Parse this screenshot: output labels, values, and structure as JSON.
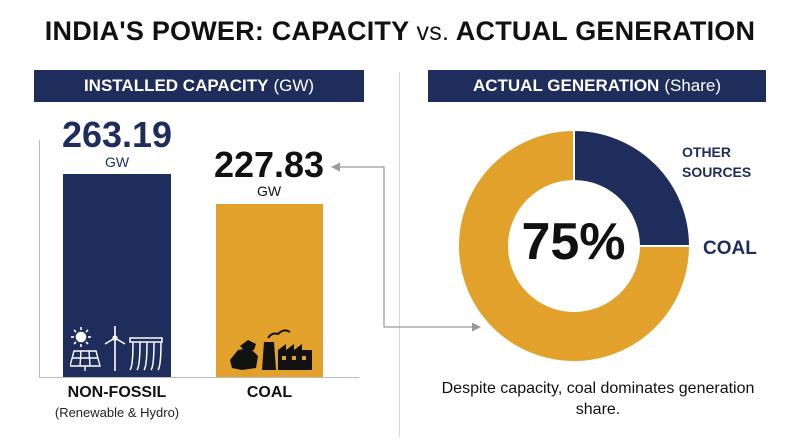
{
  "title": {
    "main": "INDIA'S POWER: CAPACITY",
    "vs": "vs.",
    "end": "ACTUAL GENERATION"
  },
  "left_panel": {
    "header": "INSTALLED CAPACITY",
    "header_sub": "(GW)"
  },
  "right_panel": {
    "header": "ACTUAL GENERATION",
    "header_sub": "(Share)"
  },
  "caption": "Despite capacity, coal dominates generation share.",
  "colors": {
    "navy": "#1f2d5c",
    "gold": "#e2a12a"
  },
  "icons": [
    "sun-icon",
    "solar-panel-icon",
    "wind-turbine-icon",
    "hydro-dam-icon",
    "coal-lumps-icon",
    "power-plant-icon"
  ],
  "chart_data": [
    {
      "type": "bar",
      "title": "INSTALLED CAPACITY (GW)",
      "categories": [
        "NON-FOSSIL",
        "COAL"
      ],
      "category_subtitles": [
        "(Renewable & Hydro)",
        ""
      ],
      "values": [
        263.19,
        227.83
      ],
      "value_labels": [
        "263.19",
        "227.83"
      ],
      "unit": "GW",
      "colors": [
        "#1f2d5c",
        "#e2a12a"
      ],
      "ylim": [
        0,
        290
      ]
    },
    {
      "type": "pie",
      "title": "ACTUAL GENERATION (Share)",
      "labels": [
        "OTHER SOURCES",
        "COAL"
      ],
      "values": [
        25,
        75
      ],
      "value_labels": [
        "25%",
        "75%"
      ],
      "colors": [
        "#1f2d5c",
        "#e2a12a"
      ],
      "donut": true
    }
  ]
}
